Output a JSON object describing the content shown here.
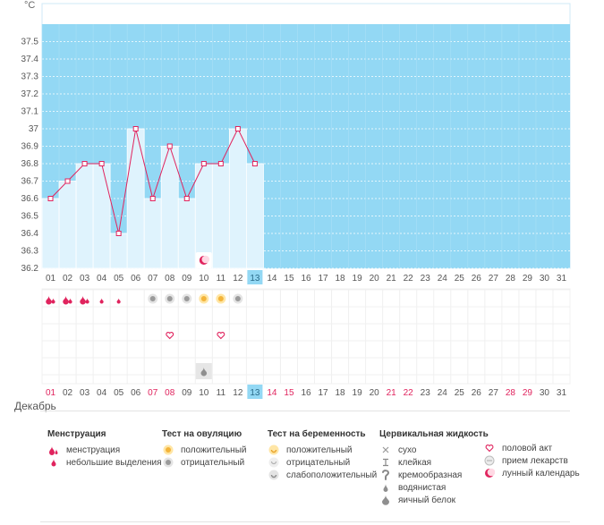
{
  "chart_data": {
    "type": "line",
    "unit": "°C",
    "month": "Декабрь",
    "ylim": [
      36.2,
      37.6
    ],
    "yticks": [
      "36.2",
      "36.3",
      "36.4",
      "36.5",
      "36.6",
      "36.7",
      "36.8",
      "36.9",
      "37",
      "37.1",
      "37.2",
      "37.3",
      "37.4",
      "37.5"
    ],
    "days": [
      "01",
      "02",
      "03",
      "04",
      "05",
      "06",
      "07",
      "08",
      "09",
      "10",
      "11",
      "12",
      "13",
      "14",
      "15",
      "16",
      "17",
      "18",
      "19",
      "20",
      "21",
      "22",
      "23",
      "24",
      "25",
      "26",
      "27",
      "28",
      "29",
      "30",
      "31"
    ],
    "current_day": "13",
    "weekend_days": [
      "01",
      "07",
      "08",
      "14",
      "15",
      "21",
      "22",
      "28",
      "29"
    ],
    "series": [
      {
        "values": [
          36.6,
          36.7,
          36.8,
          36.8,
          36.4,
          37.0,
          36.6,
          36.9,
          36.6,
          36.8,
          36.8,
          37.0,
          36.8
        ]
      }
    ],
    "menstruation": {
      "full_days": [
        "01",
        "02",
        "03"
      ],
      "light_days": [
        "04",
        "05"
      ]
    },
    "ovulation_negative_days": [
      "07",
      "08",
      "09",
      "12"
    ],
    "ovulation_positive_days": [
      "10",
      "11"
    ],
    "intercourse_days": [
      "08",
      "11"
    ],
    "cervical_days": [
      "10"
    ],
    "lunar_days": [
      "10"
    ],
    "colors": {
      "sky": "#93d8f4",
      "bar": "#dff3fd",
      "bar_outline": "#ffffff",
      "line": "#e0245e",
      "today": "#93d8f4",
      "weekend": "#e0245e",
      "grid": "#f0f0f0"
    }
  },
  "legend": {
    "menstruation": {
      "title": "Менструация",
      "items": [
        "менструация",
        "небольшие выделения"
      ]
    },
    "ovulation": {
      "title": "Тест на овуляцию",
      "items": [
        "положительный",
        "отрицательный"
      ]
    },
    "pregnancy": {
      "title": "Тест на беременность",
      "items": [
        "положительный",
        "отрицательный",
        "слабоположительный"
      ]
    },
    "cervical": {
      "title": "Цервикальная жидкость",
      "items": [
        "сухо",
        "клейкая",
        "кремообразная",
        "водянистая",
        "яичный белок"
      ]
    },
    "other": {
      "items": [
        "половой акт",
        "прием лекарств",
        "лунный календарь"
      ]
    }
  }
}
